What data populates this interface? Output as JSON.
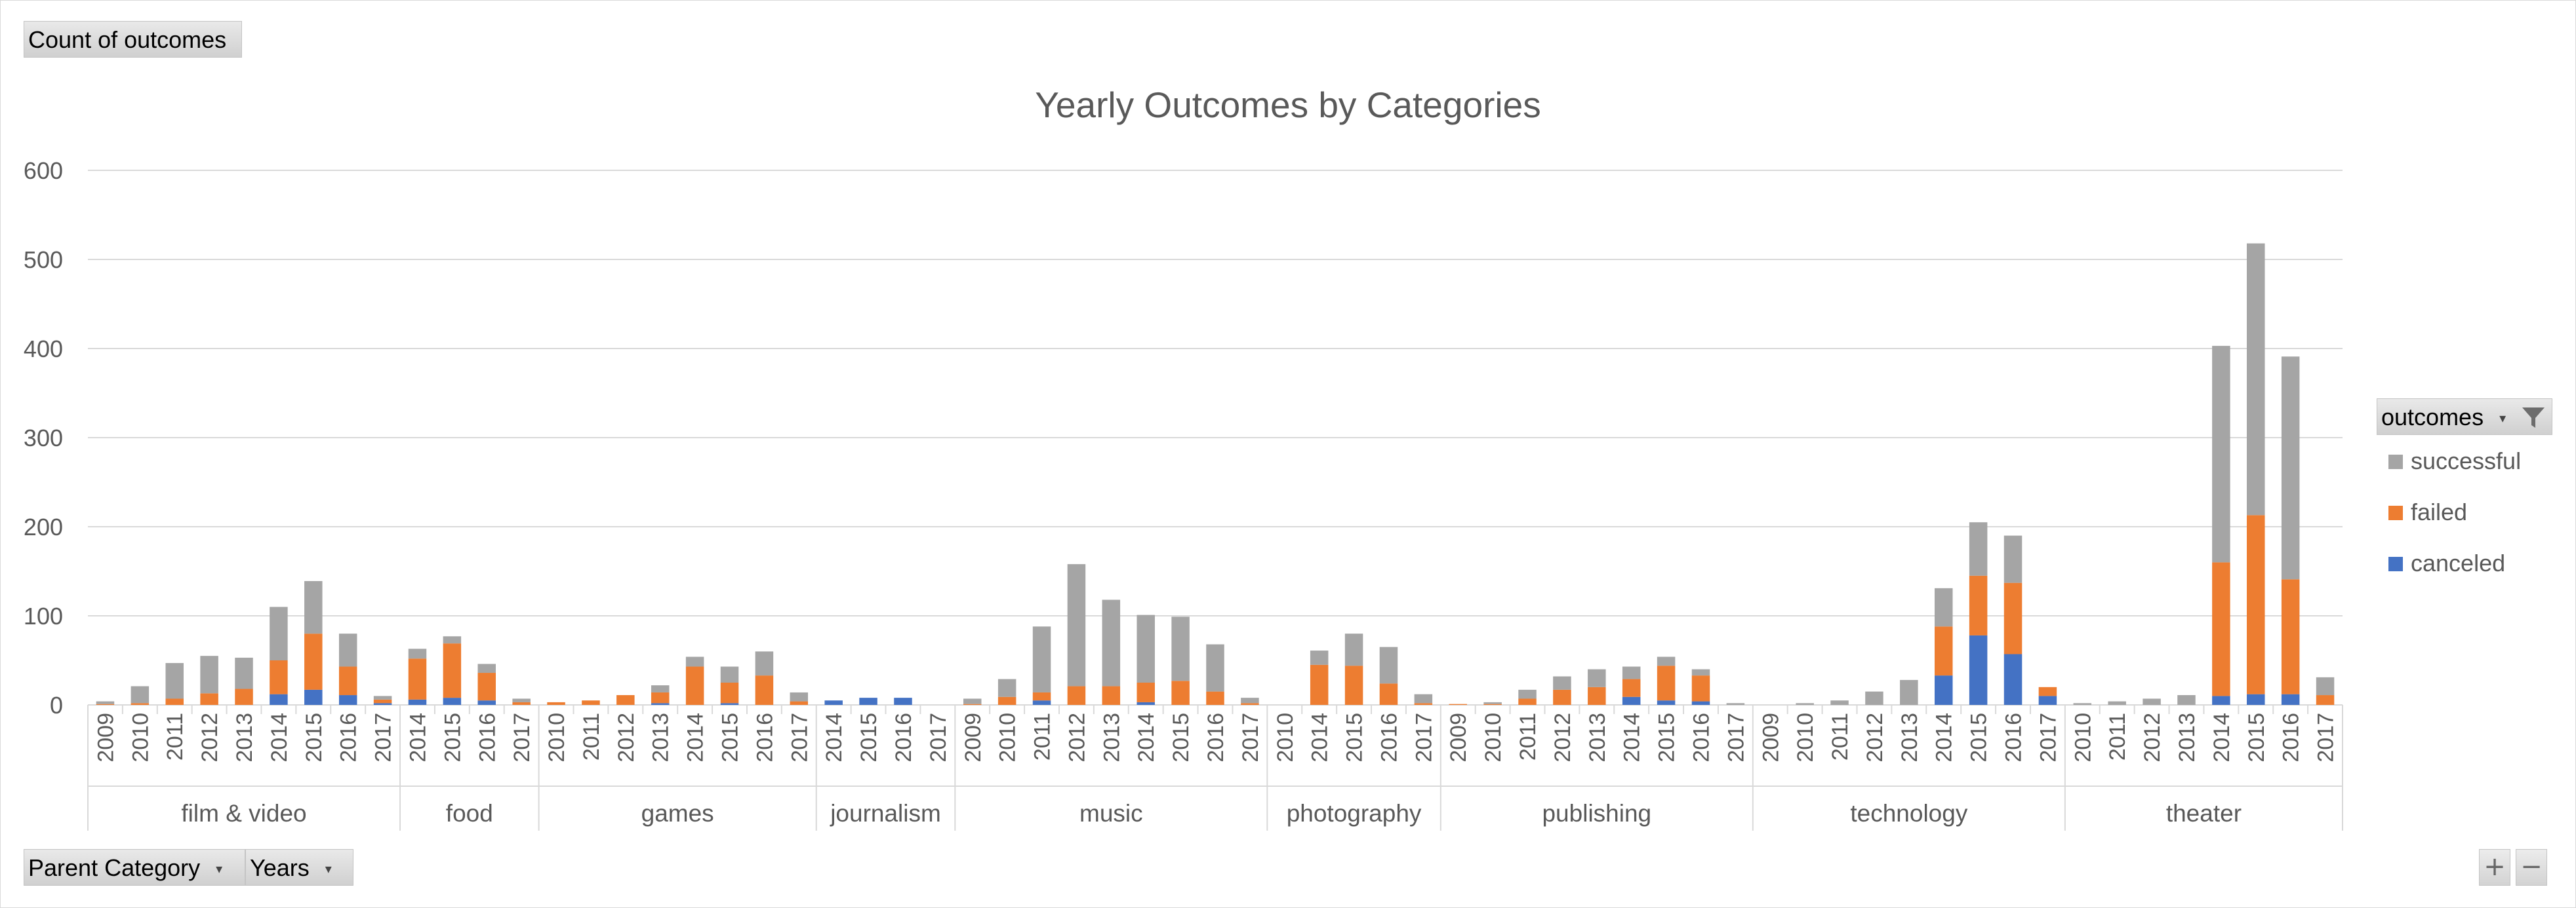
{
  "pivot": {
    "values_field": "Count of outcomes",
    "row_fields": [
      "Parent Category",
      "Years"
    ],
    "legend_field": "outcomes"
  },
  "colors": {
    "successful": "#a5a5a5",
    "failed": "#ed7d31",
    "canceled": "#4472c4",
    "gridline": "#d9d9d9",
    "text": "#595959"
  },
  "icons": {
    "filter": "filter-icon",
    "dropdown": "dropdown-arrow-icon",
    "zoom_in": "plus-icon",
    "zoom_out": "minus-icon"
  },
  "zoom": {
    "in": "+",
    "out": "−"
  },
  "chart_data": {
    "type": "bar",
    "stacked": true,
    "title": "Yearly Outcomes by Categories",
    "xlabel": "",
    "ylabel": "",
    "ylim": [
      0,
      600
    ],
    "yticks": [
      0,
      100,
      200,
      300,
      400,
      500,
      600
    ],
    "grid": true,
    "legend_position": "right",
    "legend_order": [
      "successful",
      "failed",
      "canceled"
    ],
    "groups": [
      {
        "name": "film & video",
        "bars": [
          {
            "year": "2009",
            "canceled": 0,
            "failed": 1,
            "successful": 3
          },
          {
            "year": "2010",
            "canceled": 0,
            "failed": 2,
            "successful": 19
          },
          {
            "year": "2011",
            "canceled": 0,
            "failed": 7,
            "successful": 40
          },
          {
            "year": "2012",
            "canceled": 0,
            "failed": 13,
            "successful": 42
          },
          {
            "year": "2013",
            "canceled": 0,
            "failed": 18,
            "successful": 35
          },
          {
            "year": "2014",
            "canceled": 12,
            "failed": 38,
            "successful": 60
          },
          {
            "year": "2015",
            "canceled": 17,
            "failed": 63,
            "successful": 59
          },
          {
            "year": "2016",
            "canceled": 11,
            "failed": 32,
            "successful": 37
          },
          {
            "year": "2017",
            "canceled": 2,
            "failed": 4,
            "successful": 4
          }
        ]
      },
      {
        "name": "food",
        "bars": [
          {
            "year": "2014",
            "canceled": 6,
            "failed": 46,
            "successful": 11
          },
          {
            "year": "2015",
            "canceled": 8,
            "failed": 61,
            "successful": 8
          },
          {
            "year": "2016",
            "canceled": 5,
            "failed": 31,
            "successful": 10
          },
          {
            "year": "2017",
            "canceled": 0,
            "failed": 3,
            "successful": 4
          }
        ]
      },
      {
        "name": "games",
        "bars": [
          {
            "year": "2010",
            "canceled": 0,
            "failed": 3,
            "successful": 0
          },
          {
            "year": "2011",
            "canceled": 0,
            "failed": 5,
            "successful": 0
          },
          {
            "year": "2012",
            "canceled": 0,
            "failed": 11,
            "successful": 0
          },
          {
            "year": "2013",
            "canceled": 2,
            "failed": 12,
            "successful": 8
          },
          {
            "year": "2014",
            "canceled": 0,
            "failed": 43,
            "successful": 11
          },
          {
            "year": "2015",
            "canceled": 2,
            "failed": 23,
            "successful": 18
          },
          {
            "year": "2016",
            "canceled": 0,
            "failed": 33,
            "successful": 27
          },
          {
            "year": "2017",
            "canceled": 0,
            "failed": 4,
            "successful": 10
          }
        ]
      },
      {
        "name": "journalism",
        "bars": [
          {
            "year": "2014",
            "canceled": 5,
            "failed": 0,
            "successful": 0
          },
          {
            "year": "2015",
            "canceled": 8,
            "failed": 0,
            "successful": 0
          },
          {
            "year": "2016",
            "canceled": 8,
            "failed": 0,
            "successful": 0
          },
          {
            "year": "2017",
            "canceled": 0,
            "failed": 0,
            "successful": 0
          }
        ]
      },
      {
        "name": "music",
        "bars": [
          {
            "year": "2009",
            "canceled": 0,
            "failed": 1,
            "successful": 6
          },
          {
            "year": "2010",
            "canceled": 0,
            "failed": 9,
            "successful": 20
          },
          {
            "year": "2011",
            "canceled": 5,
            "failed": 9,
            "successful": 74
          },
          {
            "year": "2012",
            "canceled": 0,
            "failed": 21,
            "successful": 137
          },
          {
            "year": "2013",
            "canceled": 0,
            "failed": 21,
            "successful": 97
          },
          {
            "year": "2014",
            "canceled": 3,
            "failed": 22,
            "successful": 76
          },
          {
            "year": "2015",
            "canceled": 0,
            "failed": 27,
            "successful": 72
          },
          {
            "year": "2016",
            "canceled": 0,
            "failed": 15,
            "successful": 53
          },
          {
            "year": "2017",
            "canceled": 0,
            "failed": 2,
            "successful": 6
          }
        ]
      },
      {
        "name": "photography",
        "bars": [
          {
            "year": "2010",
            "canceled": 0,
            "failed": 0,
            "successful": 0
          },
          {
            "year": "2014",
            "canceled": 0,
            "failed": 45,
            "successful": 16
          },
          {
            "year": "2015",
            "canceled": 0,
            "failed": 44,
            "successful": 36
          },
          {
            "year": "2016",
            "canceled": 0,
            "failed": 24,
            "successful": 41
          },
          {
            "year": "2017",
            "canceled": 0,
            "failed": 2,
            "successful": 10
          }
        ]
      },
      {
        "name": "publishing",
        "bars": [
          {
            "year": "2009",
            "canceled": 0,
            "failed": 1,
            "successful": 0
          },
          {
            "year": "2010",
            "canceled": 0,
            "failed": 1,
            "successful": 2
          },
          {
            "year": "2011",
            "canceled": 0,
            "failed": 7,
            "successful": 10
          },
          {
            "year": "2012",
            "canceled": 0,
            "failed": 17,
            "successful": 15
          },
          {
            "year": "2013",
            "canceled": 0,
            "failed": 20,
            "successful": 20
          },
          {
            "year": "2014",
            "canceled": 9,
            "failed": 20,
            "successful": 14
          },
          {
            "year": "2015",
            "canceled": 5,
            "failed": 39,
            "successful": 10
          },
          {
            "year": "2016",
            "canceled": 4,
            "failed": 29,
            "successful": 7
          },
          {
            "year": "2017",
            "canceled": 0,
            "failed": 0,
            "successful": 2
          }
        ]
      },
      {
        "name": "technology",
        "bars": [
          {
            "year": "2009",
            "canceled": 0,
            "failed": 0,
            "successful": 0
          },
          {
            "year": "2010",
            "canceled": 0,
            "failed": 0,
            "successful": 2
          },
          {
            "year": "2011",
            "canceled": 0,
            "failed": 0,
            "successful": 5
          },
          {
            "year": "2012",
            "canceled": 0,
            "failed": 0,
            "successful": 15
          },
          {
            "year": "2013",
            "canceled": 0,
            "failed": 0,
            "successful": 28
          },
          {
            "year": "2014",
            "canceled": 33,
            "failed": 55,
            "successful": 43
          },
          {
            "year": "2015",
            "canceled": 78,
            "failed": 67,
            "successful": 60
          },
          {
            "year": "2016",
            "canceled": 57,
            "failed": 80,
            "successful": 53
          },
          {
            "year": "2017",
            "canceled": 10,
            "failed": 10,
            "successful": 0
          }
        ]
      },
      {
        "name": "theater",
        "bars": [
          {
            "year": "2010",
            "canceled": 0,
            "failed": 0,
            "successful": 2
          },
          {
            "year": "2011",
            "canceled": 0,
            "failed": 0,
            "successful": 4
          },
          {
            "year": "2012",
            "canceled": 0,
            "failed": 0,
            "successful": 7
          },
          {
            "year": "2013",
            "canceled": 0,
            "failed": 0,
            "successful": 11
          },
          {
            "year": "2014",
            "canceled": 10,
            "failed": 150,
            "successful": 243
          },
          {
            "year": "2015",
            "canceled": 12,
            "failed": 201,
            "successful": 305
          },
          {
            "year": "2016",
            "canceled": 12,
            "failed": 129,
            "successful": 250
          },
          {
            "year": "2017",
            "canceled": 0,
            "failed": 11,
            "successful": 20
          }
        ]
      }
    ]
  }
}
